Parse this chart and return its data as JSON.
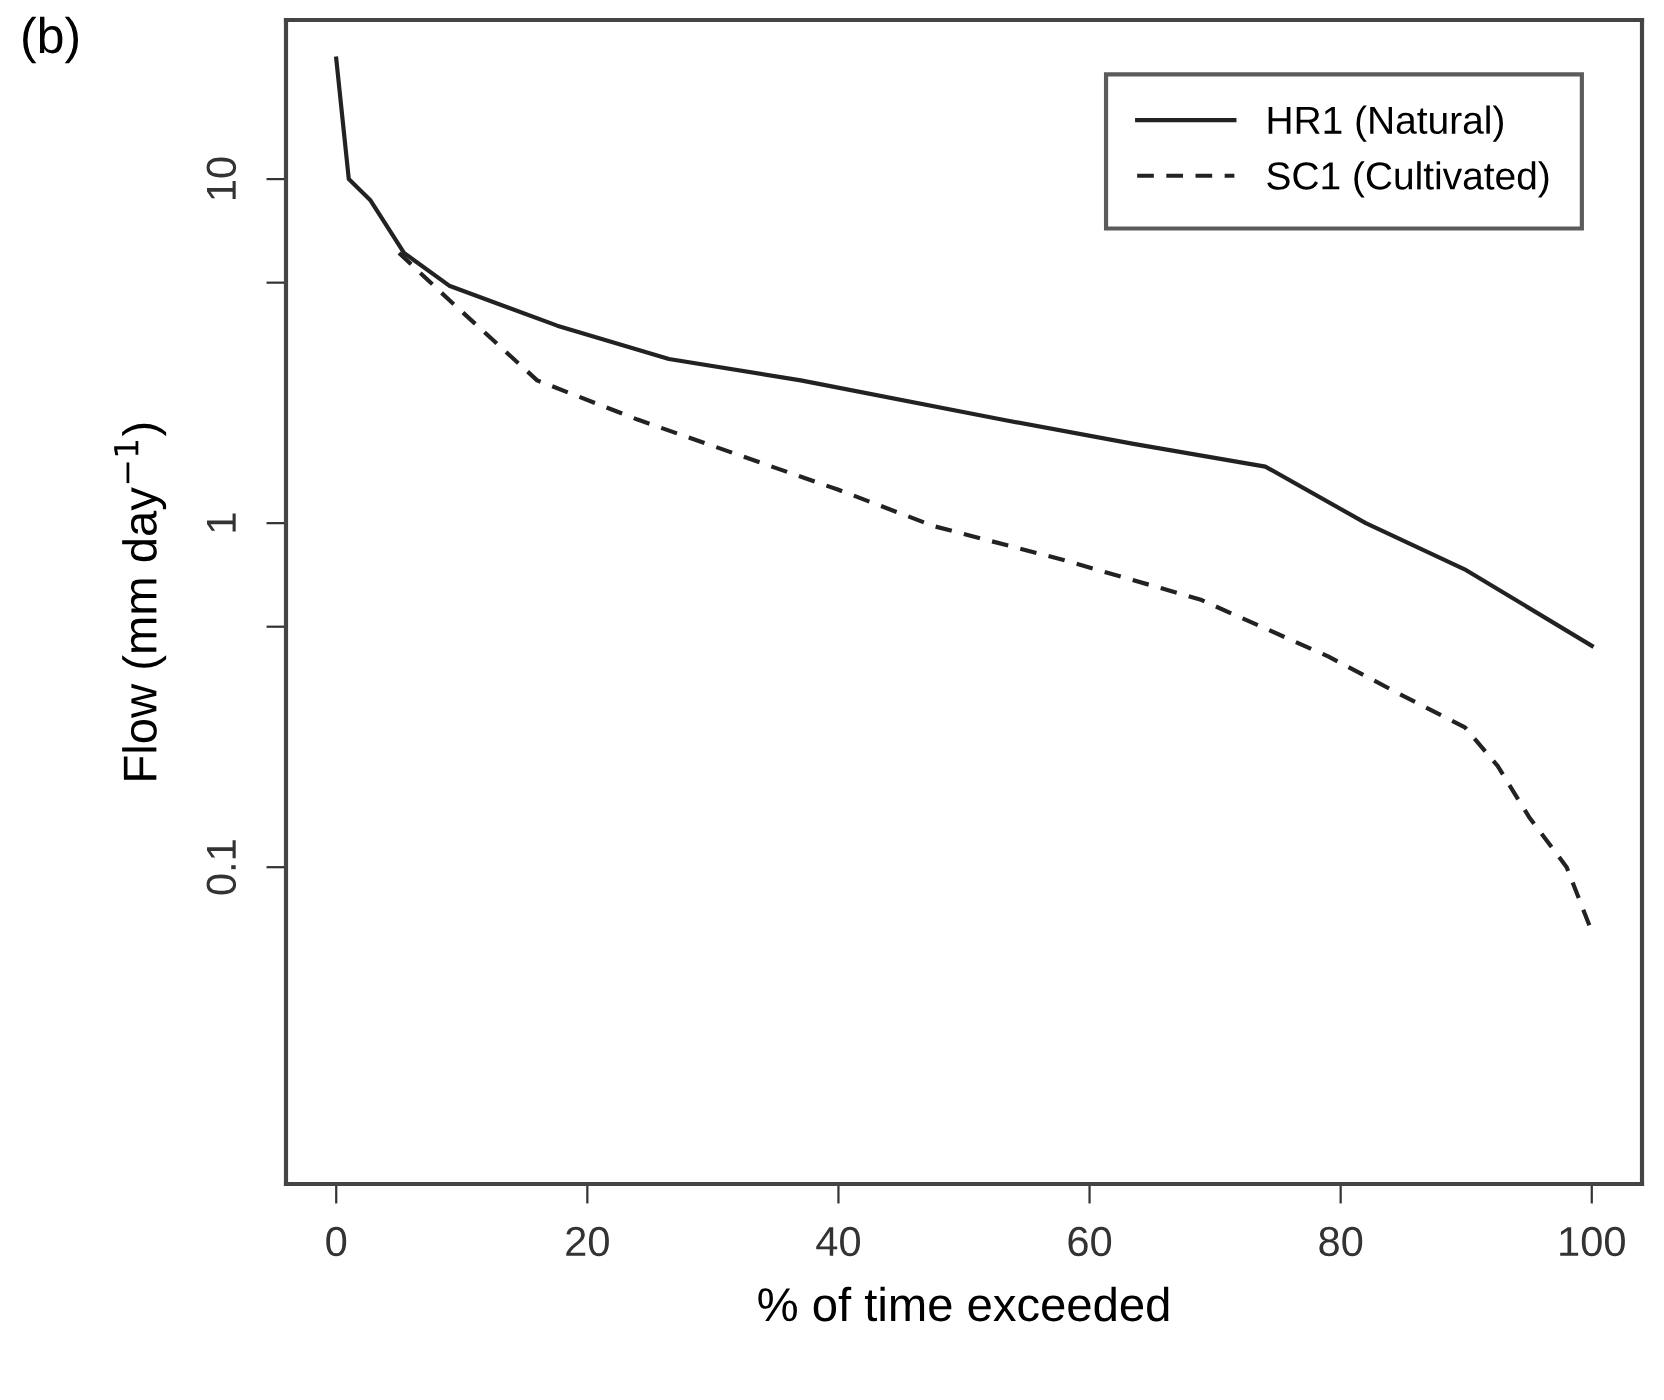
{
  "chart_data": {
    "type": "line",
    "xlabel": "% of time exceeded",
    "ylabel": "Flow (mm day$^{−1}$)",
    "annotations": [
      "(b)"
    ],
    "xlim": [
      -4,
      104
    ],
    "xticks": [
      0,
      20,
      40,
      60,
      80,
      100
    ],
    "ylim": [
      0.012,
      29
    ],
    "yticks": [
      0.1,
      {
        "value": 0.5,
        "label": null
      },
      1,
      {
        "value": 5,
        "label": null
      },
      10
    ],
    "log": "y",
    "grid": false,
    "legend": "top right",
    "marker": "none",
    "series": [
      {
        "name": "HR1 (Natural)",
        "color": "#222222",
        "line_style": "solid",
        "x": [
          0,
          1,
          2.7,
          5.4,
          9,
          17.6,
          26.5,
          37,
          53,
          63.5,
          74,
          82,
          90,
          100
        ],
        "values": [
          22.4,
          10,
          8.7,
          6.1,
          4.9,
          3.75,
          3.0,
          2.6,
          2.0,
          1.7,
          1.46,
          1.0,
          0.73,
          0.44
        ]
      },
      {
        "name": "SC1 (Cultivated)",
        "color": "#222222",
        "line_style": "dashed",
        "x": [
          5,
          9,
          16,
          24,
          34.7,
          40,
          47.6,
          58,
          68.8,
          79,
          84.6,
          89.9,
          92.5,
          95,
          98,
          100
        ],
        "values": [
          6.1,
          4.45,
          2.6,
          2.0,
          1.46,
          1.25,
          0.98,
          0.78,
          0.6,
          0.41,
          0.32,
          0.255,
          0.197,
          0.14,
          0.1,
          0.065
        ]
      }
    ]
  }
}
